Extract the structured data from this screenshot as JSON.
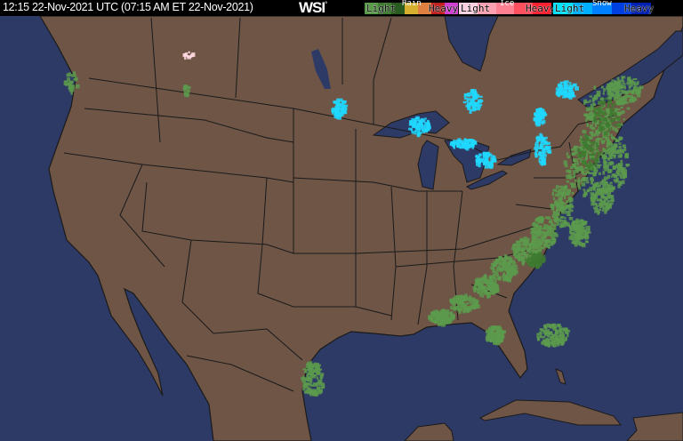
{
  "header": {
    "timestamp": "12:15 22-Nov-2021 UTC  (07:15 AM ET 22-Nov-2021)",
    "logo": "WSI",
    "logo_mark": "°"
  },
  "legend": {
    "rain": {
      "title": "Rain",
      "light": "Light",
      "heavy": "Heavy",
      "colors": [
        "#5a9a4a",
        "#3e7a30",
        "#2a5a1e",
        "#d8b030",
        "#e08040",
        "#c02020",
        "#d040d0"
      ]
    },
    "ice": {
      "title": "Ice",
      "light": "Light",
      "heavy": "Heavy",
      "colors": [
        "#ffd0e0",
        "#ffa0b0",
        "#ff8090",
        "#ff5060",
        "#ff2030"
      ]
    },
    "snow": {
      "title": "Snow",
      "light": "Light",
      "heavy": "Heavy",
      "colors": [
        "#00e0ff",
        "#00b0ff",
        "#0080ff",
        "#0040e0",
        "#0020b0"
      ]
    }
  },
  "map": {
    "ocean_color": "#2e3a66",
    "land_color": "#6e5546",
    "border_color": "#1a1a1a",
    "rain_color": "#5c9a4c",
    "snow_color": "#20d8ff"
  }
}
